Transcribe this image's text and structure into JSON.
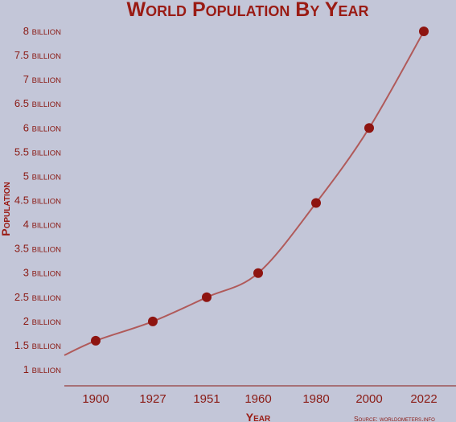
{
  "chart_data": {
    "type": "line",
    "title": "World Population By Year",
    "xlabel": "Year",
    "ylabel": "Population",
    "source": "Source: worldometers.info",
    "x": [
      "1900",
      "1927",
      "1951",
      "1960",
      "1980",
      "2000",
      "2022"
    ],
    "values": [
      1.6,
      2.0,
      2.5,
      3.0,
      4.45,
      6.0,
      8.0
    ],
    "y_ticks": [
      {
        "value": 1,
        "num": "1",
        "unit": "billion"
      },
      {
        "value": 1.5,
        "num": "1.5",
        "unit": "billion"
      },
      {
        "value": 2,
        "num": "2",
        "unit": "billion"
      },
      {
        "value": 2.5,
        "num": "2.5",
        "unit": "billion"
      },
      {
        "value": 3,
        "num": "3",
        "unit": "billion"
      },
      {
        "value": 3.5,
        "num": "3.5",
        "unit": "billion"
      },
      {
        "value": 4,
        "num": "4",
        "unit": "billion"
      },
      {
        "value": 4.5,
        "num": "4.5",
        "unit": "billion"
      },
      {
        "value": 5,
        "num": "5",
        "unit": "billion"
      },
      {
        "value": 5.5,
        "num": "5.5",
        "unit": "billion"
      },
      {
        "value": 6,
        "num": "6",
        "unit": "billion"
      },
      {
        "value": 6.5,
        "num": "6.5",
        "unit": "billion"
      },
      {
        "value": 7,
        "num": "7",
        "unit": "billion"
      },
      {
        "value": 7.5,
        "num": "7.5",
        "unit": "billion"
      },
      {
        "value": 8,
        "num": "8",
        "unit": "billion"
      }
    ],
    "ylim": [
      1,
      8
    ],
    "grid": false,
    "colors": {
      "background": "#c3c6d8",
      "line": "#b05a5a",
      "marker": "#8e1410",
      "axis": "#8a1a14",
      "text": "#8a1a14"
    }
  }
}
